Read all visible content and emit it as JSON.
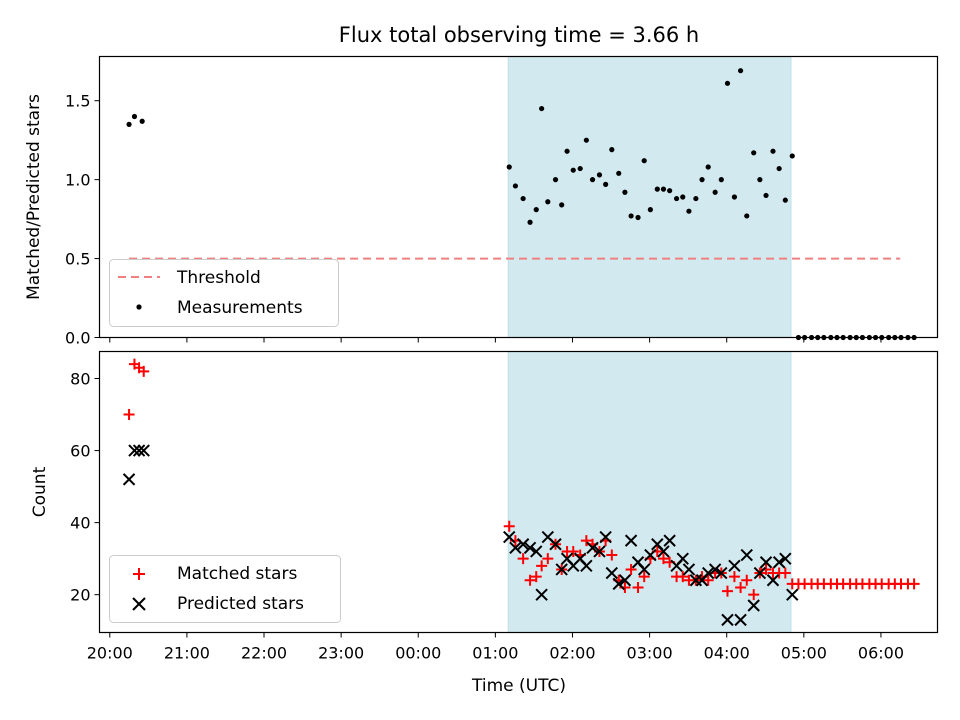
{
  "title": "Flux total observing time = 3.66 h",
  "xlabel": "Time (UTC)",
  "x_ticks": [
    "20:00",
    "21:00",
    "22:00",
    "23:00",
    "00:00",
    "01:00",
    "02:00",
    "03:00",
    "04:00",
    "05:00",
    "06:00"
  ],
  "chart_data": [
    {
      "type": "scatter",
      "ylabel": "Matched/Predicted stars",
      "ylim": [
        0,
        1.78
      ],
      "xlim": [
        "19:52",
        "06:44"
      ],
      "x_unit": "hours after 20:00 UTC",
      "y_ticks": [
        "0.0",
        "0.5",
        "1.0",
        "1.5"
      ],
      "y_tick_values": [
        0,
        0.5,
        1.0,
        1.5
      ],
      "grid": false,
      "legend": "lower-left",
      "shaded_interval": [
        "01:10",
        "04:50"
      ],
      "shade_color": "#d2e9f0",
      "threshold": {
        "name": "Threshold",
        "y": 0.5,
        "x_start": "20:15",
        "x_end": "06:15",
        "color": "#f08080",
        "style": "dashed"
      },
      "series": [
        {
          "name": "Measurements",
          "marker": "dot",
          "color": "#000000",
          "points": [
            [
              0.25,
              1.35
            ],
            [
              0.32,
              1.4
            ],
            [
              0.42,
              1.37
            ],
            [
              5.18,
              1.08
            ],
            [
              5.26,
              0.96
            ],
            [
              5.36,
              0.88
            ],
            [
              5.45,
              0.73
            ],
            [
              5.53,
              0.81
            ],
            [
              5.6,
              1.45
            ],
            [
              5.68,
              0.86
            ],
            [
              5.78,
              1.0
            ],
            [
              5.86,
              0.84
            ],
            [
              5.93,
              1.18
            ],
            [
              6.01,
              1.06
            ],
            [
              6.1,
              1.07
            ],
            [
              6.18,
              1.25
            ],
            [
              6.26,
              1.0
            ],
            [
              6.35,
              1.03
            ],
            [
              6.43,
              0.97
            ],
            [
              6.51,
              1.19
            ],
            [
              6.6,
              1.04
            ],
            [
              6.68,
              0.92
            ],
            [
              6.76,
              0.77
            ],
            [
              6.85,
              0.76
            ],
            [
              6.93,
              1.12
            ],
            [
              7.01,
              0.81
            ],
            [
              7.1,
              0.94
            ],
            [
              7.18,
              0.94
            ],
            [
              7.26,
              0.93
            ],
            [
              7.35,
              0.88
            ],
            [
              7.43,
              0.89
            ],
            [
              7.51,
              0.8
            ],
            [
              7.6,
              0.88
            ],
            [
              7.68,
              1.0
            ],
            [
              7.76,
              1.08
            ],
            [
              7.85,
              0.92
            ],
            [
              7.93,
              1.0
            ],
            [
              8.01,
              1.61
            ],
            [
              8.1,
              0.89
            ],
            [
              8.18,
              1.69
            ],
            [
              8.26,
              0.77
            ],
            [
              8.35,
              1.17
            ],
            [
              8.43,
              1.0
            ],
            [
              8.51,
              0.9
            ],
            [
              8.6,
              1.18
            ],
            [
              8.68,
              1.07
            ],
            [
              8.76,
              0.87
            ],
            [
              8.85,
              1.15
            ],
            [
              8.93,
              0
            ],
            [
              9.01,
              0
            ],
            [
              9.1,
              0
            ],
            [
              9.18,
              0
            ],
            [
              9.26,
              0
            ],
            [
              9.35,
              0
            ],
            [
              9.43,
              0
            ],
            [
              9.51,
              0
            ],
            [
              9.6,
              0
            ],
            [
              9.68,
              0
            ],
            [
              9.76,
              0
            ],
            [
              9.85,
              0
            ],
            [
              9.93,
              0
            ],
            [
              10.01,
              0
            ],
            [
              10.1,
              0
            ],
            [
              10.18,
              0
            ],
            [
              10.26,
              0
            ],
            [
              10.35,
              0
            ],
            [
              10.43,
              0
            ]
          ]
        }
      ]
    },
    {
      "type": "scatter",
      "ylabel": "Count",
      "ylim": [
        9.5,
        87.5
      ],
      "xlim": [
        "19:52",
        "06:44"
      ],
      "x_unit": "hours after 20:00 UTC",
      "y_ticks": [
        "20",
        "40",
        "60",
        "80"
      ],
      "y_tick_values": [
        20,
        40,
        60,
        80
      ],
      "grid": false,
      "legend": "lower-left",
      "shaded_interval": [
        "01:10",
        "04:50"
      ],
      "shade_color": "#d2e9f0",
      "series": [
        {
          "name": "Matched stars",
          "marker": "plus",
          "color": "#ff0000",
          "points": [
            [
              0.25,
              70
            ],
            [
              0.32,
              84
            ],
            [
              0.38,
              83
            ],
            [
              0.44,
              82
            ],
            [
              5.18,
              39
            ],
            [
              5.26,
              35
            ],
            [
              5.36,
              30
            ],
            [
              5.45,
              24
            ],
            [
              5.53,
              25
            ],
            [
              5.6,
              28
            ],
            [
              5.68,
              30
            ],
            [
              5.78,
              34
            ],
            [
              5.86,
              27
            ],
            [
              5.93,
              32
            ],
            [
              6.01,
              32
            ],
            [
              6.1,
              31
            ],
            [
              6.18,
              35
            ],
            [
              6.26,
              34
            ],
            [
              6.35,
              32
            ],
            [
              6.43,
              35
            ],
            [
              6.51,
              31
            ],
            [
              6.6,
              24
            ],
            [
              6.68,
              22
            ],
            [
              6.76,
              27
            ],
            [
              6.85,
              22
            ],
            [
              6.93,
              25
            ],
            [
              7.01,
              30
            ],
            [
              7.1,
              32
            ],
            [
              7.18,
              30
            ],
            [
              7.26,
              29
            ],
            [
              7.35,
              25
            ],
            [
              7.43,
              25
            ],
            [
              7.51,
              24
            ],
            [
              7.6,
              24
            ],
            [
              7.68,
              25
            ],
            [
              7.76,
              24
            ],
            [
              7.85,
              26
            ],
            [
              7.93,
              26
            ],
            [
              8.01,
              21
            ],
            [
              8.1,
              25
            ],
            [
              8.18,
              22
            ],
            [
              8.26,
              24
            ],
            [
              8.35,
              20
            ],
            [
              8.43,
              26
            ],
            [
              8.51,
              27
            ],
            [
              8.6,
              26
            ],
            [
              8.68,
              26
            ],
            [
              8.76,
              26
            ],
            [
              8.85,
              23
            ],
            [
              8.93,
              23
            ],
            [
              9.01,
              23
            ],
            [
              9.1,
              23
            ],
            [
              9.18,
              23
            ],
            [
              9.26,
              23
            ],
            [
              9.35,
              23
            ],
            [
              9.43,
              23
            ],
            [
              9.51,
              23
            ],
            [
              9.6,
              23
            ],
            [
              9.68,
              23
            ],
            [
              9.76,
              23
            ],
            [
              9.85,
              23
            ],
            [
              9.93,
              23
            ],
            [
              10.01,
              23
            ],
            [
              10.1,
              23
            ],
            [
              10.18,
              23
            ],
            [
              10.26,
              23
            ],
            [
              10.35,
              23
            ],
            [
              10.43,
              23
            ]
          ]
        },
        {
          "name": "Predicted stars",
          "marker": "cross",
          "color": "#000000",
          "points": [
            [
              0.25,
              52
            ],
            [
              0.32,
              60
            ],
            [
              0.38,
              60
            ],
            [
              0.44,
              60
            ],
            [
              5.18,
              36
            ],
            [
              5.26,
              33
            ],
            [
              5.36,
              34
            ],
            [
              5.45,
              33
            ],
            [
              5.53,
              32
            ],
            [
              5.6,
              20
            ],
            [
              5.68,
              36
            ],
            [
              5.78,
              34
            ],
            [
              5.86,
              27
            ],
            [
              5.93,
              30
            ],
            [
              6.01,
              28
            ],
            [
              6.1,
              30
            ],
            [
              6.18,
              28
            ],
            [
              6.26,
              33
            ],
            [
              6.35,
              32
            ],
            [
              6.43,
              36
            ],
            [
              6.51,
              26
            ],
            [
              6.6,
              23
            ],
            [
              6.68,
              24
            ],
            [
              6.76,
              35
            ],
            [
              6.85,
              29
            ],
            [
              6.93,
              27
            ],
            [
              7.01,
              31
            ],
            [
              7.1,
              34
            ],
            [
              7.18,
              32
            ],
            [
              7.26,
              35
            ],
            [
              7.35,
              28
            ],
            [
              7.43,
              30
            ],
            [
              7.51,
              27
            ],
            [
              7.6,
              24
            ],
            [
              7.68,
              24
            ],
            [
              7.76,
              26
            ],
            [
              7.85,
              27
            ],
            [
              7.93,
              26
            ],
            [
              8.01,
              13
            ],
            [
              8.1,
              28
            ],
            [
              8.18,
              13
            ],
            [
              8.26,
              31
            ],
            [
              8.35,
              17
            ],
            [
              8.43,
              26
            ],
            [
              8.51,
              29
            ],
            [
              8.6,
              24
            ],
            [
              8.68,
              29
            ],
            [
              8.76,
              30
            ],
            [
              8.85,
              20
            ]
          ]
        }
      ]
    }
  ]
}
